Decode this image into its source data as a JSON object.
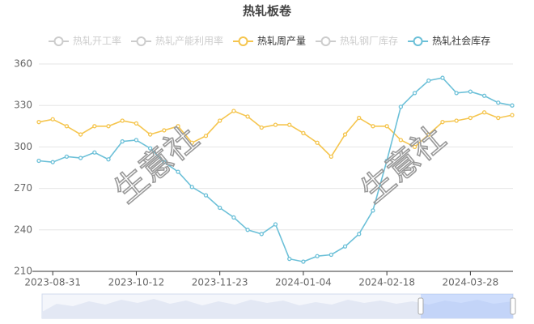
{
  "chart_data": {
    "type": "line",
    "title": "热轧板卷",
    "watermark": "生意社",
    "hidden_series": [
      {
        "name": "热轧开工率",
        "color": "#cccccc"
      },
      {
        "name": "热轧产能利用率",
        "color": "#cccccc"
      },
      {
        "name": "热轧钢厂库存",
        "color": "#cccccc"
      }
    ],
    "categories": [
      null,
      "2023-08-31",
      null,
      null,
      null,
      null,
      null,
      "2023-10-12",
      null,
      null,
      null,
      null,
      null,
      "2023-11-23",
      null,
      null,
      null,
      null,
      null,
      "2024-01-04",
      null,
      null,
      null,
      null,
      null,
      "2024-02-18",
      null,
      null,
      null,
      null,
      null,
      "2024-03-28",
      null,
      null,
      null
    ],
    "series": [
      {
        "name": "热轧周产量",
        "color": "#f5c54e",
        "values": [
          318,
          320,
          315,
          309,
          315,
          315,
          319,
          317,
          309,
          312,
          315,
          303,
          308,
          319,
          326,
          322,
          314,
          316,
          316,
          310,
          303,
          293,
          309,
          321,
          315,
          315,
          305,
          300,
          309,
          318,
          319,
          321,
          325,
          321,
          323
        ]
      },
      {
        "name": "热轧社会库存",
        "color": "#6cc0d8",
        "values": [
          290,
          289,
          293,
          292,
          296,
          291,
          304,
          305,
          299,
          289,
          282,
          271,
          265,
          256,
          249,
          240,
          237,
          244,
          219,
          217,
          221,
          222,
          228,
          237,
          254,
          290,
          329,
          339,
          348,
          350,
          339,
          340,
          337,
          332,
          330
        ]
      }
    ],
    "legend_order": [
      0,
      1,
      "s0",
      2,
      "s1"
    ],
    "ylim": [
      210,
      360
    ],
    "yticks": [
      210,
      240,
      270,
      300,
      330,
      360
    ],
    "grid": true
  }
}
